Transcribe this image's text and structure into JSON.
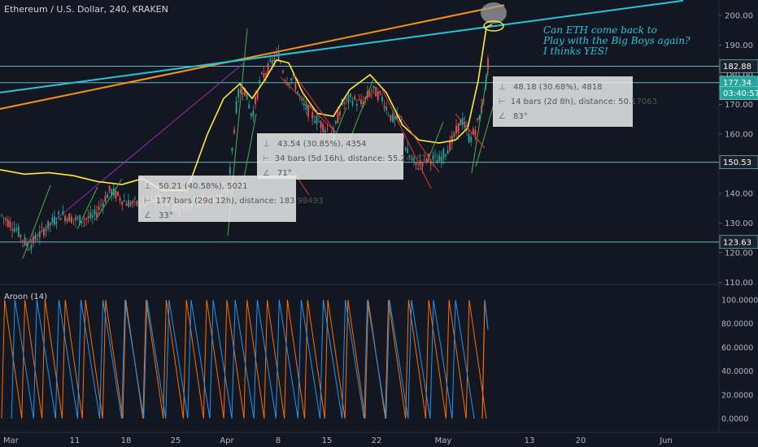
{
  "header": {
    "title": "Ethereum / U.S. Dollar, 240, KRAKEN"
  },
  "note": {
    "lines": [
      "Can ETH come back to",
      "Play with the Big Boys again?",
      "I thinks YES!"
    ]
  },
  "indicator": {
    "label": "Aroon (14)"
  },
  "colors": {
    "background": "#131722",
    "orange": "#f7931a",
    "cyan": "#26c6da",
    "yellow": "#ffeb3b",
    "up": "#26a69a",
    "down": "#ef5350",
    "aroon_up": "#ff6d00",
    "aroon_down": "#2196f3",
    "purple": "#9c27b0",
    "green": "#4caf50",
    "red": "#e53935"
  },
  "price_axis": {
    "ticks": [
      "200.00",
      "190.00",
      "180.00",
      "170.00",
      "160.00",
      "150.00",
      "140.00",
      "130.00",
      "120.00",
      "110.00"
    ]
  },
  "aroon_axis": {
    "ticks": [
      "100.0000",
      "80.0000",
      "60.0000",
      "40.0000",
      "20.0000",
      "0.0000"
    ]
  },
  "time_axis": {
    "ticks": [
      "Mar",
      "11",
      "18",
      "25",
      "Apr",
      "8",
      "15",
      "22",
      "May",
      "13",
      "20",
      "Jun"
    ]
  },
  "price_labels": [
    {
      "value": 182.88,
      "text": "182.88",
      "color": "#1e222d"
    },
    {
      "value": 177.34,
      "text": "177.34",
      "color": "#26a69a"
    },
    {
      "value": 173.8,
      "text": "03:40:57",
      "color": "#26a69a"
    },
    {
      "value": 150.53,
      "text": "150.53",
      "color": "#1e222d"
    },
    {
      "value": 123.63,
      "text": "123.63",
      "color": "#1e222d"
    }
  ],
  "measure_boxes": [
    {
      "rows": [
        "50.21 (40.58%), 5021",
        "177 bars (29d 12h), distance: 183.98493",
        "33°"
      ]
    },
    {
      "rows": [
        "43.54 (30.85%), 4354",
        "34 bars (5d 16h), distance: 55.24487",
        "71°"
      ]
    },
    {
      "rows": [
        "48.18 (30.68%), 4818",
        "14 bars (2d 8h), distance: 50.17063",
        "83°"
      ]
    }
  ],
  "chart_data": {
    "type": "line",
    "title": "Ethereum / U.S. Dollar, 240, KRAKEN",
    "y_range": [
      110,
      202
    ],
    "horizontal_levels": [
      182.88,
      177.34,
      150.53,
      123.63
    ],
    "price_path": [
      [
        0,
        133
      ],
      [
        20,
        128
      ],
      [
        35,
        122
      ],
      [
        55,
        128
      ],
      [
        75,
        133
      ],
      [
        95,
        131
      ],
      [
        115,
        132
      ],
      [
        135,
        141
      ],
      [
        155,
        137
      ],
      [
        175,
        136
      ],
      [
        195,
        138
      ],
      [
        215,
        136
      ],
      [
        235,
        137
      ],
      [
        255,
        138
      ],
      [
        280,
        140
      ],
      [
        292,
        173
      ],
      [
        300,
        176
      ],
      [
        310,
        166
      ],
      [
        320,
        178
      ],
      [
        332,
        183
      ],
      [
        342,
        187
      ],
      [
        352,
        178
      ],
      [
        360,
        179
      ],
      [
        372,
        170
      ],
      [
        385,
        166
      ],
      [
        400,
        162
      ],
      [
        410,
        160
      ],
      [
        420,
        170
      ],
      [
        432,
        172
      ],
      [
        445,
        170
      ],
      [
        458,
        175
      ],
      [
        470,
        172
      ],
      [
        482,
        165
      ],
      [
        492,
        165
      ],
      [
        500,
        154
      ],
      [
        512,
        149
      ],
      [
        525,
        152
      ],
      [
        540,
        151
      ],
      [
        555,
        157
      ],
      [
        568,
        165
      ],
      [
        578,
        158
      ],
      [
        585,
        162
      ],
      [
        592,
        168
      ],
      [
        598,
        178
      ],
      [
        603,
        192
      ]
    ],
    "aroon_up_peaks": 24,
    "aroon_down_peaks": 22
  }
}
